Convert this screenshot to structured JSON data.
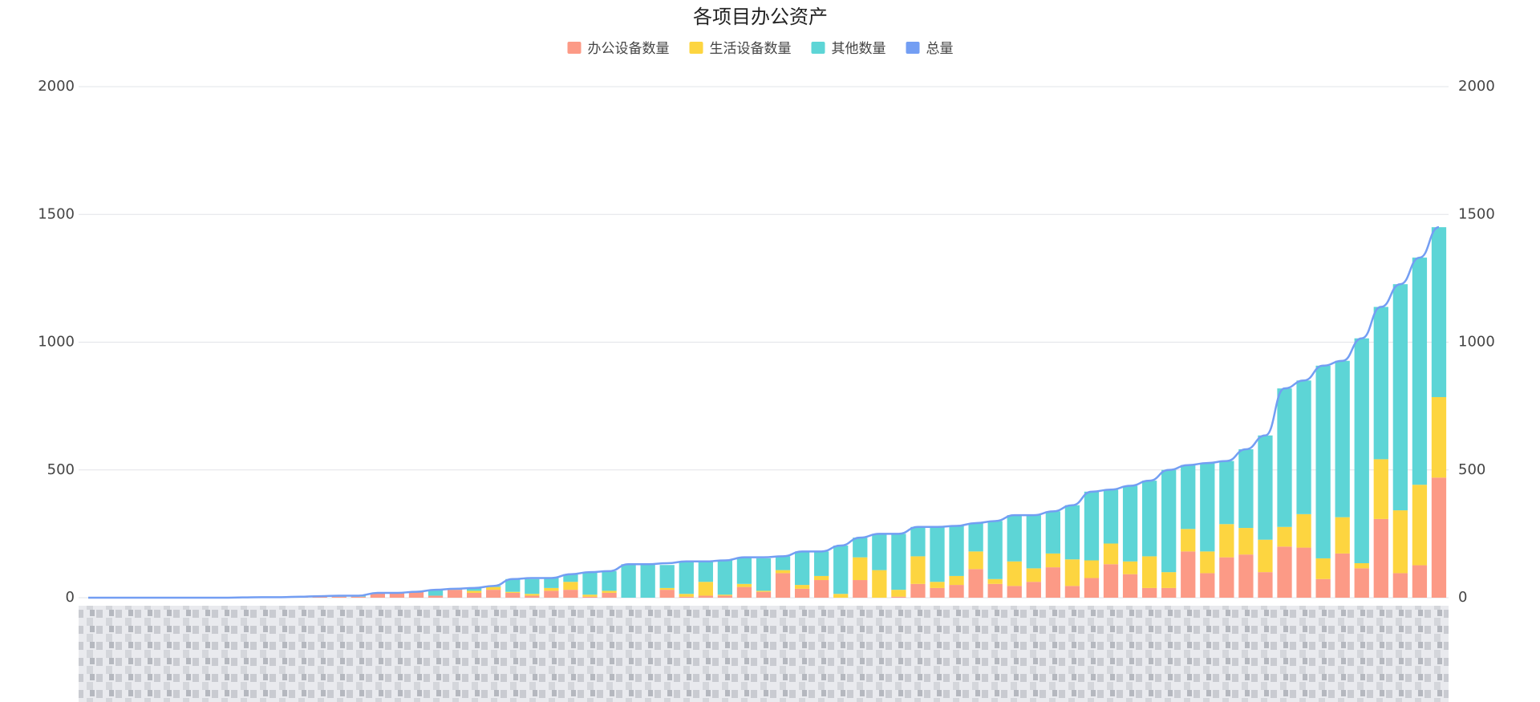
{
  "chart_data": {
    "type": "bar",
    "title": "各项目办公资产",
    "categories": [
      null,
      null,
      null,
      null,
      null,
      null,
      null,
      null,
      null,
      null,
      null,
      null,
      null,
      null,
      null,
      null,
      null,
      null,
      null,
      null,
      null,
      null,
      null,
      null,
      null,
      null,
      null,
      null,
      null,
      null,
      null,
      null,
      null,
      null,
      null,
      null,
      null,
      null,
      null,
      null,
      null,
      null,
      null,
      null,
      null,
      null,
      null,
      null,
      null,
      null,
      null,
      null,
      null,
      null,
      null,
      null,
      null,
      null,
      null,
      null,
      null,
      null,
      null,
      null,
      null,
      null,
      null,
      null,
      null,
      null,
      null
    ],
    "series": [
      {
        "name": "办公设备数量",
        "color": "#fc9a86",
        "type": "bar",
        "values": [
          0,
          0,
          0,
          0,
          0,
          0,
          0,
          0,
          1,
          2,
          2,
          2,
          4,
          4,
          4,
          19,
          19,
          23,
          8,
          31,
          19,
          31,
          19,
          8,
          27,
          31,
          4,
          19,
          0,
          0,
          31,
          4,
          8,
          8,
          42,
          23,
          96,
          35,
          69,
          0,
          69,
          0,
          4,
          54,
          38,
          50,
          112,
          54,
          46,
          62,
          119,
          46,
          77,
          131,
          92,
          38,
          38,
          181,
          96,
          158,
          169,
          100,
          200,
          196,
          73,
          173,
          115,
          308,
          96,
          127,
          470
        ]
      },
      {
        "name": "生活设备数量",
        "color": "#fdd540",
        "type": "bar",
        "values": [
          0,
          0,
          0,
          0,
          0,
          0,
          0,
          0,
          0,
          0,
          0,
          0,
          0,
          0,
          0,
          0,
          0,
          0,
          0,
          0,
          8,
          11,
          4,
          7,
          11,
          31,
          8,
          8,
          0,
          0,
          7,
          11,
          54,
          4,
          12,
          4,
          12,
          15,
          16,
          15,
          89,
          108,
          27,
          108,
          24,
          35,
          69,
          19,
          96,
          53,
          54,
          104,
          69,
          81,
          50,
          124,
          62,
          88,
          85,
          130,
          104,
          127,
          77,
          131,
          81,
          142,
          20,
          234,
          246,
          315,
          315
        ]
      },
      {
        "name": "其他数量",
        "color": "#5dd5d6",
        "type": "bar",
        "values": [
          0,
          0,
          0,
          0,
          0,
          0,
          0,
          0,
          0,
          0,
          0,
          2,
          2,
          4,
          4,
          0,
          0,
          0,
          23,
          4,
          11,
          4,
          50,
          58,
          39,
          30,
          88,
          77,
          131,
          131,
          90,
          127,
          80,
          134,
          104,
          127,
          54,
          131,
          96,
          189,
          77,
          142,
          219,
          115,
          215,
          196,
          111,
          227,
          181,
          208,
          165,
          212,
          269,
          211,
          296,
          296,
          400,
          250,
          346,
          247,
          308,
          408,
          542,
          523,
          754,
          612,
          880,
          596,
          885,
          889,
          665
        ]
      },
      {
        "name": "总量",
        "color": "#739ef3",
        "type": "line",
        "axis": "y2",
        "values": [
          0,
          0,
          0,
          0,
          0,
          0,
          0,
          0,
          1,
          2,
          2,
          4,
          6,
          8,
          8,
          19,
          19,
          23,
          31,
          35,
          38,
          46,
          73,
          77,
          77,
          92,
          100,
          104,
          131,
          131,
          135,
          142,
          142,
          146,
          158,
          158,
          162,
          181,
          181,
          204,
          235,
          250,
          250,
          277,
          277,
          281,
          292,
          300,
          323,
          323,
          338,
          362,
          415,
          423,
          438,
          458,
          500,
          519,
          527,
          535,
          581,
          635,
          819,
          850,
          908,
          927,
          1015,
          1138,
          1227,
          1331,
          1450
        ]
      }
    ],
    "ylim": [
      0,
      2000
    ],
    "yticks": [
      0,
      500,
      1000,
      1500,
      2000
    ],
    "y2lim": [
      0,
      2000
    ],
    "y2ticks": [
      0,
      500,
      1000,
      1500,
      2000
    ],
    "grid": true,
    "legend": "top"
  }
}
